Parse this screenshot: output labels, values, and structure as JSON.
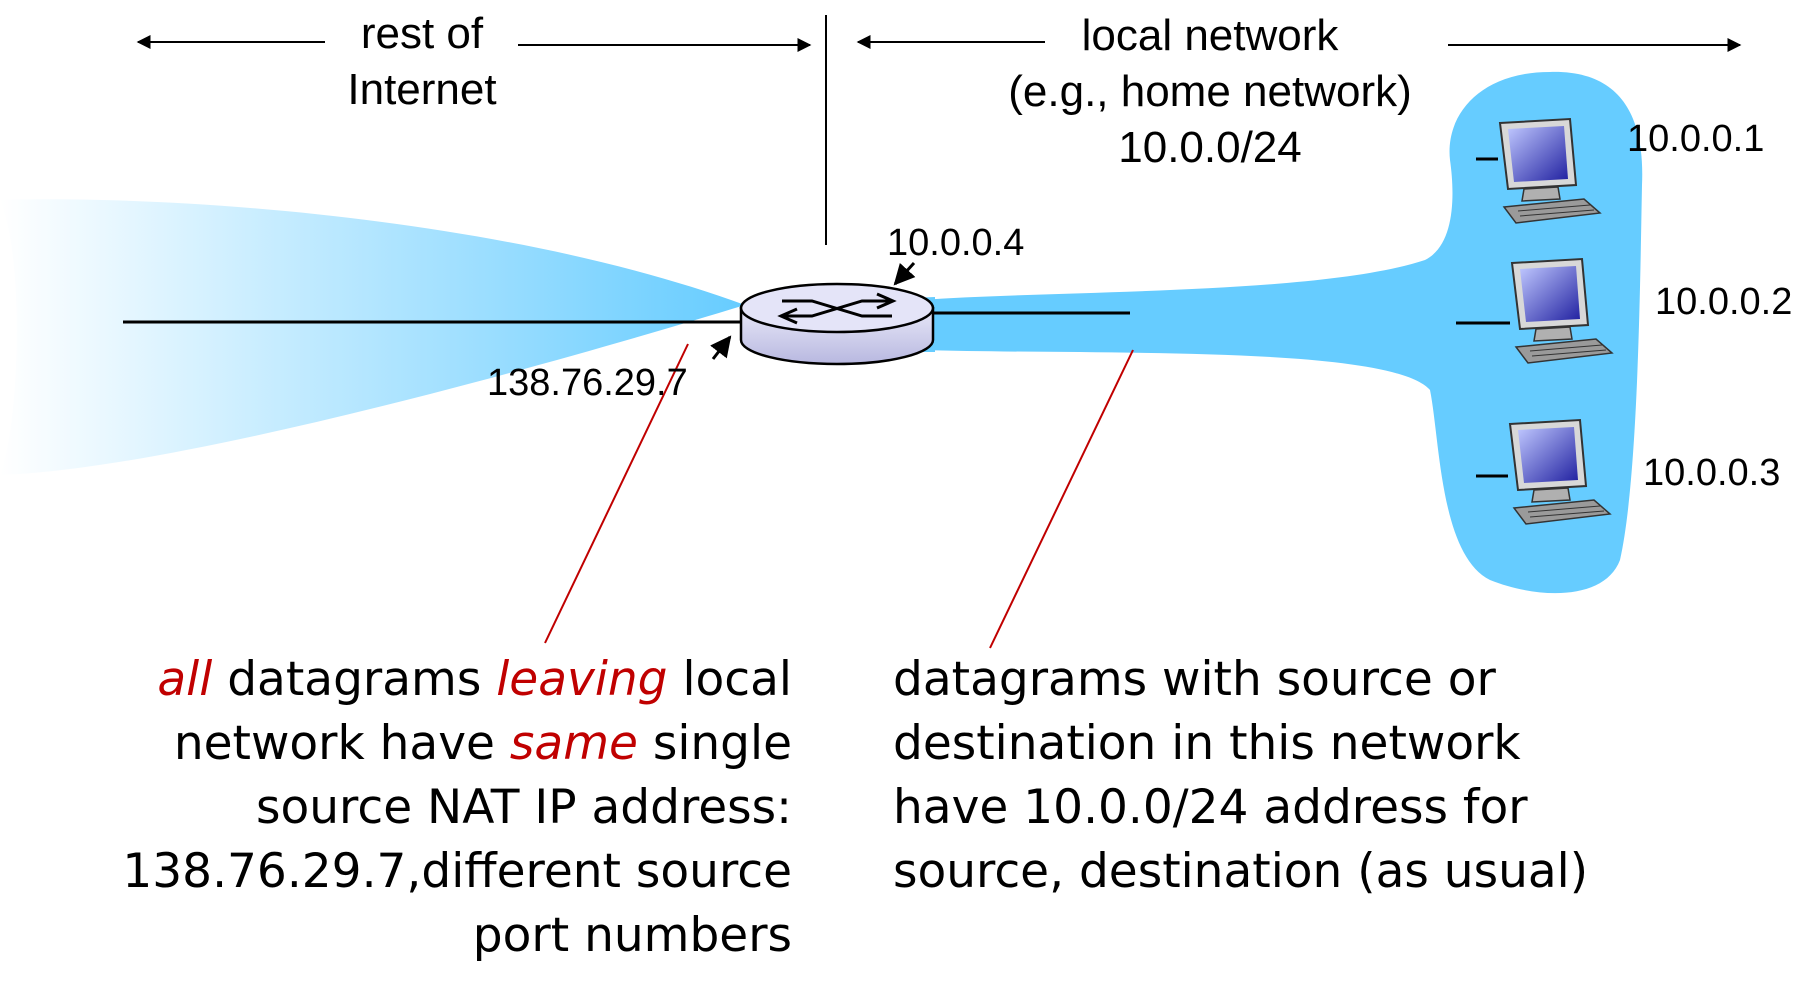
{
  "labels": {
    "rest_of_internet": [
      "rest of",
      "Internet"
    ],
    "local_network": [
      "local network",
      "(e.g., home network)",
      "10.0.0/24"
    ]
  },
  "addresses": {
    "router_local": "10.0.0.4",
    "router_public": "138.76.29.7",
    "host1": "10.0.0.1",
    "host2": "10.0.0.2",
    "host3": "10.0.0.3"
  },
  "caption_left": {
    "line1": [
      {
        "text": "all",
        "emphasis": true
      },
      {
        "text": " datagrams ",
        "emphasis": false
      },
      {
        "text": "leaving",
        "emphasis": true
      },
      {
        "text": " local",
        "emphasis": false
      }
    ],
    "line2": [
      {
        "text": "network have ",
        "emphasis": false
      },
      {
        "text": "same",
        "emphasis": true
      },
      {
        "text": " single",
        "emphasis": false
      }
    ],
    "line3": "source NAT IP address:",
    "line4": "138.76.29.7,different source",
    "line5": "port numbers"
  },
  "caption_right": [
    "datagrams with source or",
    "destination in this network",
    "have 10.0.0/24 address for",
    "source, destination (as usual)"
  ],
  "colors": {
    "network_blue": "#66ccff",
    "annotation_red": "#c00000",
    "router_fill": "#dcdcf5"
  },
  "icons": [
    "router-icon",
    "desktop-computer-icon"
  ]
}
